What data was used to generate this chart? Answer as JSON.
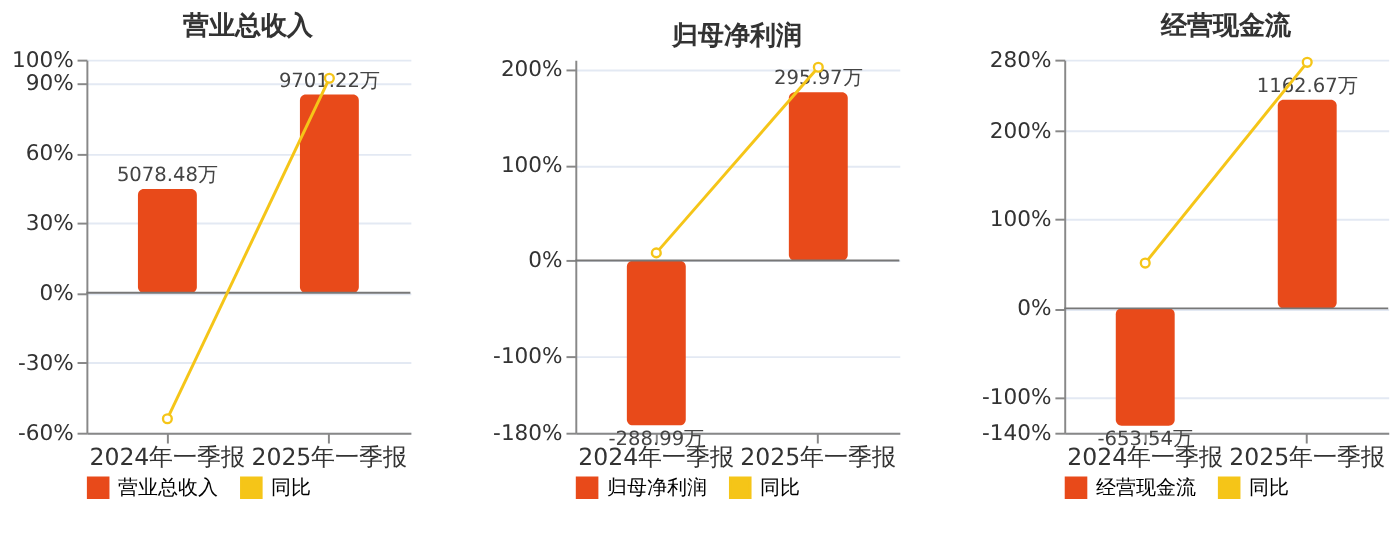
{
  "chart_data": [
    {
      "type": "bar",
      "title": "营业总收入",
      "categories": [
        "2024年一季报",
        "2025年一季报"
      ],
      "series": [
        {
          "name": "营业总收入",
          "axis": "y2",
          "color": "#e84a1a",
          "values": [
            5078.48,
            9701.22
          ],
          "value_labels": [
            "5078.48万",
            "9701.22万"
          ]
        },
        {
          "name": "同比",
          "type": "line",
          "color": "#f5c518",
          "marker": "circle",
          "line_style": "solid",
          "values": [
            -54,
            92
          ]
        }
      ],
      "ylim": [
        -60,
        100
      ],
      "yticks": [
        {
          "value": -60,
          "label": "-60%"
        },
        {
          "value": -30,
          "label": "-30%"
        },
        {
          "value": 0,
          "label": "0%"
        },
        {
          "value": 30,
          "label": "30%"
        },
        {
          "value": 60,
          "label": "60%"
        },
        {
          "value": 90,
          "label": "90%"
        },
        {
          "value": 100,
          "label": "100%"
        }
      ],
      "y2lim": [
        -6848,
        11413
      ],
      "grid": "y",
      "legend": "bottom"
    },
    {
      "type": "bar",
      "title": "归母净利润",
      "categories": [
        "2024年一季报",
        "2025年一季报"
      ],
      "series": [
        {
          "name": "归母净利润",
          "axis": "y2",
          "color": "#e84a1a",
          "values": [
            -288.99,
            295.97
          ],
          "value_labels": [
            "-288.99万",
            "295.97万"
          ]
        },
        {
          "name": "同比",
          "type": "line",
          "color": "#f5c518",
          "marker": "circle",
          "line_style": "solid",
          "values": [
            8,
            202
          ]
        }
      ],
      "ylim": [
        -180,
        210
      ],
      "yticks": [
        {
          "value": -180,
          "label": "-180%"
        },
        {
          "value": -100,
          "label": "-100%"
        },
        {
          "value": 0,
          "label": "0%"
        },
        {
          "value": 100,
          "label": "100%"
        },
        {
          "value": 200,
          "label": "200%"
        }
      ],
      "y2lim": [
        -302,
        353
      ],
      "grid": "y",
      "legend": "bottom"
    },
    {
      "type": "bar",
      "title": "经营现金流",
      "categories": [
        "2024年一季报",
        "2025年一季报"
      ],
      "series": [
        {
          "name": "经营现金流",
          "axis": "y2",
          "color": "#e84a1a",
          "values": [
            -653.54,
            1162.67
          ],
          "value_labels": [
            "-653.54万",
            "1162.67万"
          ]
        },
        {
          "name": "同比",
          "type": "line",
          "color": "#f5c518",
          "marker": "circle",
          "line_style": "solid",
          "values": [
            51,
            277
          ]
        }
      ],
      "ylim": [
        -140,
        280
      ],
      "yticks": [
        {
          "value": -140,
          "label": "-140%"
        },
        {
          "value": -100,
          "label": "-100%"
        },
        {
          "value": 0,
          "label": "0%"
        },
        {
          "value": 100,
          "label": "100%"
        },
        {
          "value": 200,
          "label": "200%"
        },
        {
          "value": 280,
          "label": "280%"
        }
      ],
      "y2lim": [
        -693,
        1386
      ],
      "grid": "y",
      "legend": "bottom"
    }
  ]
}
